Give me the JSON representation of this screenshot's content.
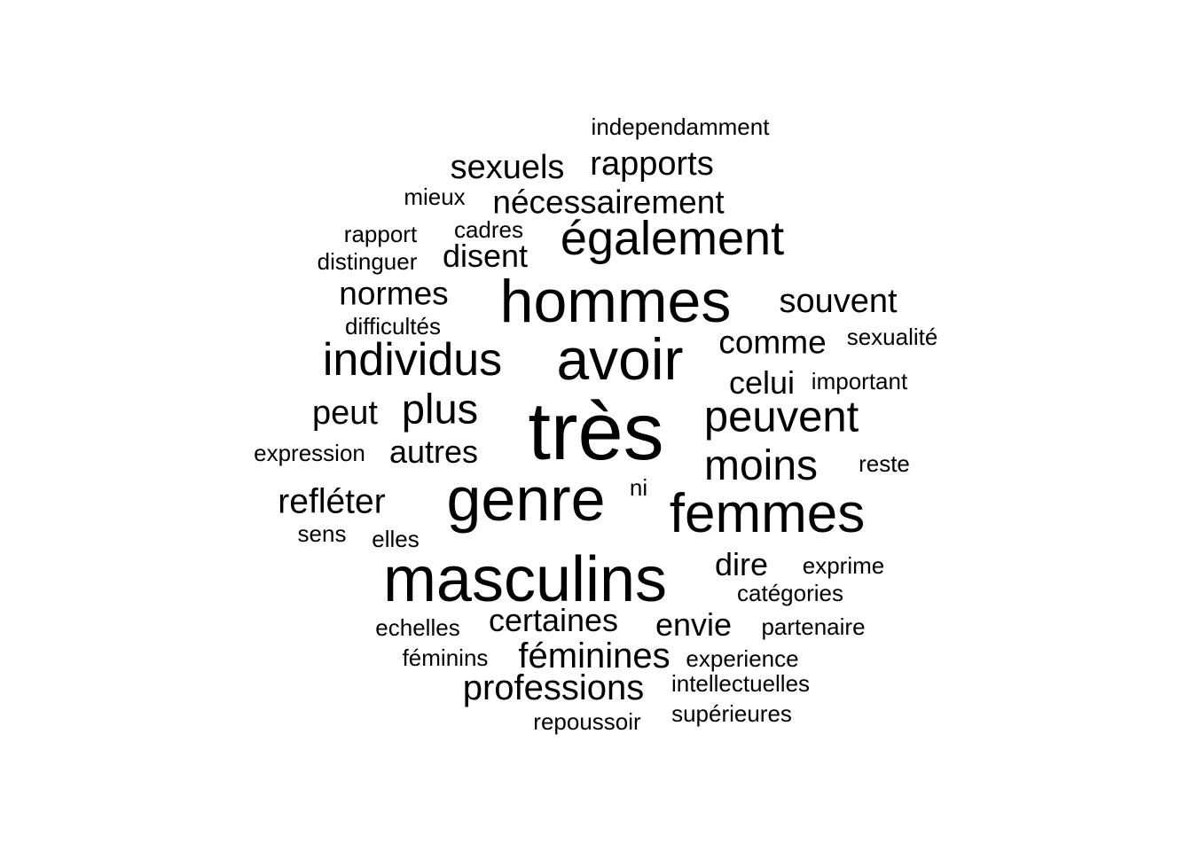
{
  "word_cloud": {
    "text_color": "#000000",
    "background": "#ffffff",
    "words": [
      {
        "text": "très",
        "weight": 100
      },
      {
        "text": "masculins",
        "weight": 72
      },
      {
        "text": "genre",
        "weight": 70
      },
      {
        "text": "hommes",
        "weight": 68
      },
      {
        "text": "avoir",
        "weight": 66
      },
      {
        "text": "femmes",
        "weight": 62
      },
      {
        "text": "également",
        "weight": 55
      },
      {
        "text": "individus",
        "weight": 52
      },
      {
        "text": "peuvent",
        "weight": 49
      },
      {
        "text": "moins",
        "weight": 48
      },
      {
        "text": "plus",
        "weight": 47
      },
      {
        "text": "professions",
        "weight": 40
      },
      {
        "text": "féminines",
        "weight": 40
      },
      {
        "text": "refléter",
        "weight": 39
      },
      {
        "text": "peut",
        "weight": 38
      },
      {
        "text": "souvent",
        "weight": 38
      },
      {
        "text": "sexuels",
        "weight": 38
      },
      {
        "text": "rapports",
        "weight": 38
      },
      {
        "text": "nécessairement",
        "weight": 37
      },
      {
        "text": "normes",
        "weight": 37
      },
      {
        "text": "comme",
        "weight": 37
      },
      {
        "text": "autres",
        "weight": 36
      },
      {
        "text": "celui",
        "weight": 36
      },
      {
        "text": "certaines",
        "weight": 36
      },
      {
        "text": "envie",
        "weight": 36
      },
      {
        "text": "disent",
        "weight": 36
      },
      {
        "text": "dire",
        "weight": 36
      },
      {
        "text": "independamment",
        "weight": 28
      },
      {
        "text": "expression",
        "weight": 27
      },
      {
        "text": "sexualité",
        "weight": 27
      },
      {
        "text": "important",
        "weight": 27
      },
      {
        "text": "reste",
        "weight": 27
      },
      {
        "text": "distinguer",
        "weight": 27
      },
      {
        "text": "rapport",
        "weight": 27
      },
      {
        "text": "cadres",
        "weight": 27
      },
      {
        "text": "mieux",
        "weight": 27
      },
      {
        "text": "difficultés",
        "weight": 27
      },
      {
        "text": "ni",
        "weight": 27
      },
      {
        "text": "sens",
        "weight": 27
      },
      {
        "text": "elles",
        "weight": 27
      },
      {
        "text": "exprime",
        "weight": 27
      },
      {
        "text": "catégories",
        "weight": 27
      },
      {
        "text": "partenaire",
        "weight": 27
      },
      {
        "text": "echelles",
        "weight": 27
      },
      {
        "text": "féminins",
        "weight": 27
      },
      {
        "text": "experience",
        "weight": 27
      },
      {
        "text": "intellectuelles",
        "weight": 27
      },
      {
        "text": "supérieures",
        "weight": 27
      },
      {
        "text": "repoussoir",
        "weight": 27
      }
    ]
  }
}
